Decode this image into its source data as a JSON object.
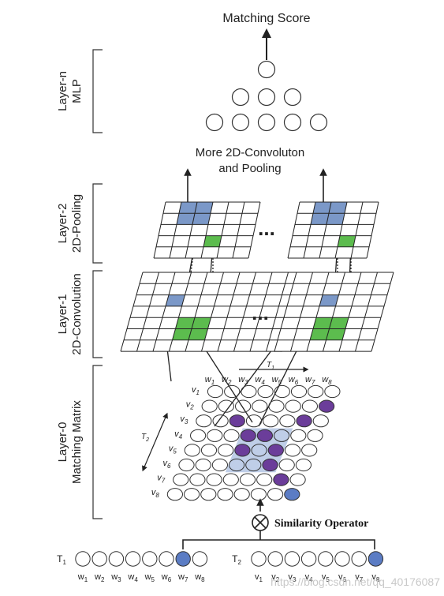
{
  "title": "Matching Score",
  "more_label_line1": "More 2D-Convoluton",
  "more_label_line2": "and Pooling",
  "ellipsis": "...",
  "similarity_label": "Similarity Operator",
  "layers": [
    {
      "name": "Layer-n",
      "sub": "MLP"
    },
    {
      "name": "Layer-2",
      "sub": "2D-Pooling"
    },
    {
      "name": "Layer-1",
      "sub": "2D-Convolution"
    },
    {
      "name": "Layer-0",
      "sub": "Matching Matrix"
    }
  ],
  "sequences": {
    "t1": {
      "label": "T",
      "sub": "1",
      "word_sub_labels": [
        "1",
        "2",
        "3",
        "4",
        "5",
        "6",
        "7",
        "8"
      ],
      "highlighted_index": 7
    },
    "t2": {
      "label": "T",
      "sub": "2",
      "word_sub_labels": [
        "1",
        "2",
        "3",
        "4",
        "5",
        "6",
        "7",
        "8"
      ],
      "highlighted_index": 8
    }
  },
  "matrix": {
    "col_prefix": "w",
    "row_prefix": "v",
    "col_indices": [
      "1",
      "2",
      "3",
      "4",
      "5",
      "6",
      "7",
      "8"
    ],
    "row_indices": [
      "1",
      "2",
      "3",
      "4",
      "5",
      "6",
      "7",
      "8"
    ],
    "t1_axis": {
      "label": "T",
      "sub": "1"
    },
    "t2_axis": {
      "label": "T",
      "sub": "2"
    },
    "purple_cells": [
      [
        2,
        8
      ],
      [
        3,
        3
      ],
      [
        3,
        7
      ],
      [
        4,
        4
      ],
      [
        4,
        5
      ],
      [
        5,
        4
      ],
      [
        5,
        6
      ],
      [
        6,
        6
      ],
      [
        7,
        7
      ]
    ],
    "highlight_window": {
      "rows": [
        3,
        5
      ],
      "cols": [
        3,
        5
      ]
    }
  },
  "mlp": {
    "rows": [
      1,
      3,
      5
    ]
  },
  "colors": {
    "purple": "#6b3d9a",
    "blue_fill": "#7b98c8",
    "blue_window": "#a9bde0",
    "green": "#5cbc4e",
    "seq_blue": "#5b7cc4",
    "line": "#222222"
  },
  "watermark": "https://blog.csdn.net/qq_40176087"
}
